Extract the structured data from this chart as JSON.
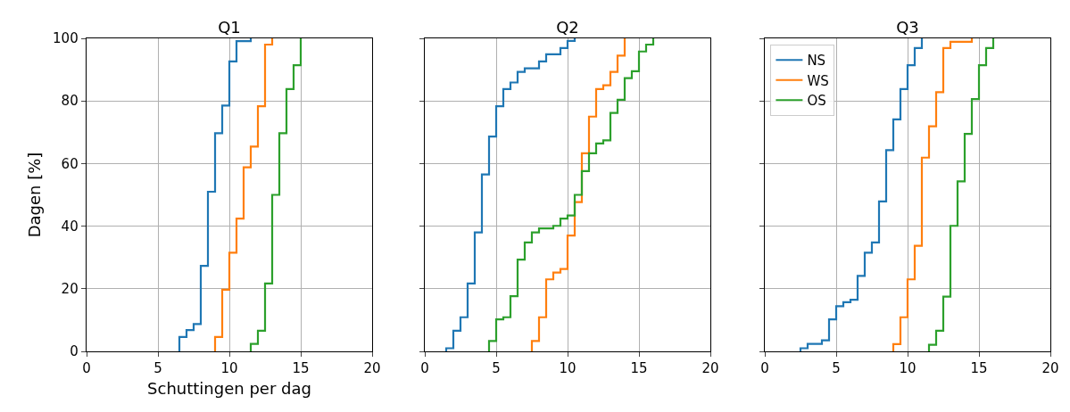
{
  "chart_data": [
    {
      "type": "step",
      "title": "Q1",
      "xlabel": "Schuttingen per dag",
      "ylabel": "Dagen [%]",
      "xlim": [
        0,
        20
      ],
      "ylim": [
        0,
        100
      ],
      "xticks": [
        0,
        5,
        10,
        15,
        20
      ],
      "yticks": [
        0,
        20,
        40,
        60,
        80,
        100
      ],
      "grid": true,
      "legend": false,
      "series": [
        {
          "color": "#1f77b4",
          "x": [
            6.5,
            6.5,
            7,
            7.5,
            8,
            8.5,
            9,
            9.5,
            10,
            10.5,
            11.5
          ],
          "values": [
            0,
            4.6,
            6.8,
            8.7,
            27.3,
            51,
            69.7,
            78.5,
            92.6,
            99.1,
            100
          ]
        },
        {
          "color": "#ff7f0e",
          "x": [
            9,
            9,
            9.5,
            10,
            10.5,
            11,
            11.5,
            12,
            12.5,
            13
          ],
          "values": [
            0,
            4.6,
            19.7,
            31.5,
            42.4,
            58.8,
            65.4,
            78.3,
            98,
            100
          ]
        },
        {
          "color": "#2ca02c",
          "x": [
            11.5,
            11.5,
            12,
            12.5,
            13,
            13.5,
            14,
            14.5,
            15
          ],
          "values": [
            0,
            2.4,
            6.6,
            21.7,
            50,
            69.7,
            83.8,
            91.4,
            100
          ]
        }
      ]
    },
    {
      "type": "step",
      "title": "Q2",
      "xlim": [
        0,
        20
      ],
      "ylim": [
        0,
        100
      ],
      "xticks": [
        0,
        5,
        10,
        15,
        20
      ],
      "yticks": [
        0,
        20,
        40,
        60,
        80,
        100
      ],
      "grid": true,
      "legend": false,
      "tick_labels": "x",
      "series": [
        {
          "color": "#1f77b4",
          "x": [
            1.5,
            1.5,
            2,
            2.5,
            3,
            3.5,
            4,
            4.5,
            5,
            5.5,
            6,
            6.5,
            7,
            8,
            8.5,
            9.5,
            10,
            10.5
          ],
          "values": [
            0,
            1,
            6.6,
            10.9,
            21.7,
            38,
            56.5,
            68.6,
            78.3,
            83.8,
            85.9,
            89.3,
            90.4,
            92.6,
            94.9,
            96.9,
            99.2,
            100
          ]
        },
        {
          "color": "#ff7f0e",
          "x": [
            7.5,
            7.5,
            8,
            8.5,
            9,
            9.5,
            10,
            10.5,
            11,
            11.5,
            12,
            12.5,
            13,
            13.5,
            14
          ],
          "values": [
            0,
            3.3,
            10.9,
            23,
            25.2,
            26.3,
            37,
            47.7,
            63.3,
            75,
            83.8,
            85,
            89.3,
            94.5,
            100
          ]
        },
        {
          "color": "#2ca02c",
          "x": [
            4.5,
            4.5,
            5,
            5.5,
            6,
            6.5,
            7,
            7.5,
            8,
            9,
            9.5,
            10,
            10.5,
            11,
            11.5,
            12,
            12.5,
            13,
            13.5,
            14,
            14.5,
            15,
            15.5,
            16
          ],
          "values": [
            0,
            3.3,
            10.2,
            10.9,
            17.6,
            29.3,
            34.8,
            38,
            39.3,
            40.1,
            42.4,
            43.4,
            50,
            57.6,
            63.3,
            66.4,
            67.4,
            76.2,
            80.4,
            87.3,
            89.5,
            95.8,
            98,
            100
          ]
        }
      ]
    },
    {
      "type": "step",
      "title": "Q3",
      "xlim": [
        0,
        20
      ],
      "ylim": [
        0,
        100
      ],
      "xticks": [
        0,
        5,
        10,
        15,
        20
      ],
      "yticks": [
        0,
        20,
        40,
        60,
        80,
        100
      ],
      "grid": true,
      "legend": "top left",
      "tick_labels": "x",
      "series": [
        {
          "name": "NS",
          "color": "#1f77b4",
          "x": [
            2.5,
            2.5,
            3,
            4,
            4.5,
            5,
            5.5,
            6,
            6.5,
            7,
            7.5,
            8,
            8.5,
            9,
            9.5,
            10,
            10.5,
            11
          ],
          "values": [
            0,
            1,
            2.4,
            3.5,
            10.2,
            14.4,
            15.7,
            16.5,
            24.1,
            31.5,
            34.8,
            47.9,
            64.3,
            74.1,
            83.8,
            91.4,
            96.9,
            100
          ]
        },
        {
          "name": "WS",
          "color": "#ff7f0e",
          "x": [
            9,
            9,
            9.5,
            10,
            10.5,
            11,
            11.5,
            12,
            12.5,
            13,
            14.5
          ],
          "values": [
            0,
            2.3,
            10.9,
            23,
            33.7,
            61.9,
            71.9,
            82.8,
            96.9,
            98.9,
            100
          ]
        },
        {
          "name": "OS",
          "color": "#2ca02c",
          "x": [
            11.5,
            11.5,
            12,
            12.5,
            13,
            13.5,
            14,
            14.5,
            15,
            15.5,
            16
          ],
          "values": [
            0,
            2.1,
            6.6,
            17.5,
            40.1,
            54.3,
            69.5,
            80.6,
            91.4,
            96.9,
            100
          ]
        }
      ]
    }
  ]
}
